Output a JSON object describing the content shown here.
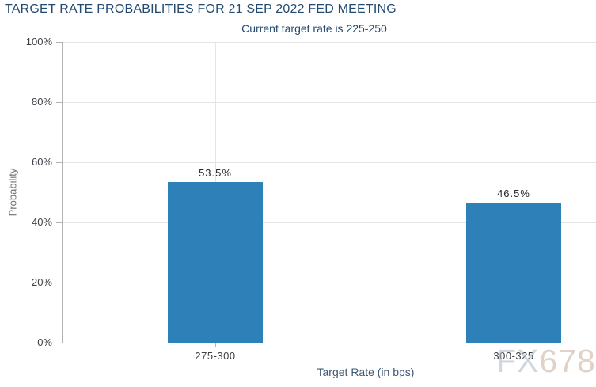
{
  "chart_data": {
    "type": "bar",
    "title": "TARGET RATE PROBABILITIES FOR 21 SEP 2022 FED MEETING",
    "subtitle": "Current target rate is 225-250",
    "categories": [
      "275-300",
      "300-325"
    ],
    "values": [
      53.5,
      46.5
    ],
    "value_labels": [
      "53.5%",
      "46.5%"
    ],
    "xlabel": "Target Rate (in bps)",
    "ylabel": "Probability",
    "ylim": [
      0,
      100
    ],
    "yticks": [
      "100%",
      "80%",
      "60%",
      "40%",
      "20%",
      "0%"
    ],
    "grid": true,
    "legend": false,
    "bar_color": "#2e80b9"
  },
  "watermark": {
    "part1": "FX",
    "part2": "678",
    "part1_color": "rgba(167,184,201,0.55)",
    "part2_color": "rgba(205,182,163,0.62)"
  },
  "colors": {
    "title": "#234a70",
    "axis_line": "#b3b3b3",
    "gridline": "#e4e4e4",
    "tick_label": "#3f3f46",
    "value_label": "#26262b",
    "x_axis_title": "#3e5871",
    "y_axis_title": "#6f6f6f",
    "background": "#ffffff"
  }
}
